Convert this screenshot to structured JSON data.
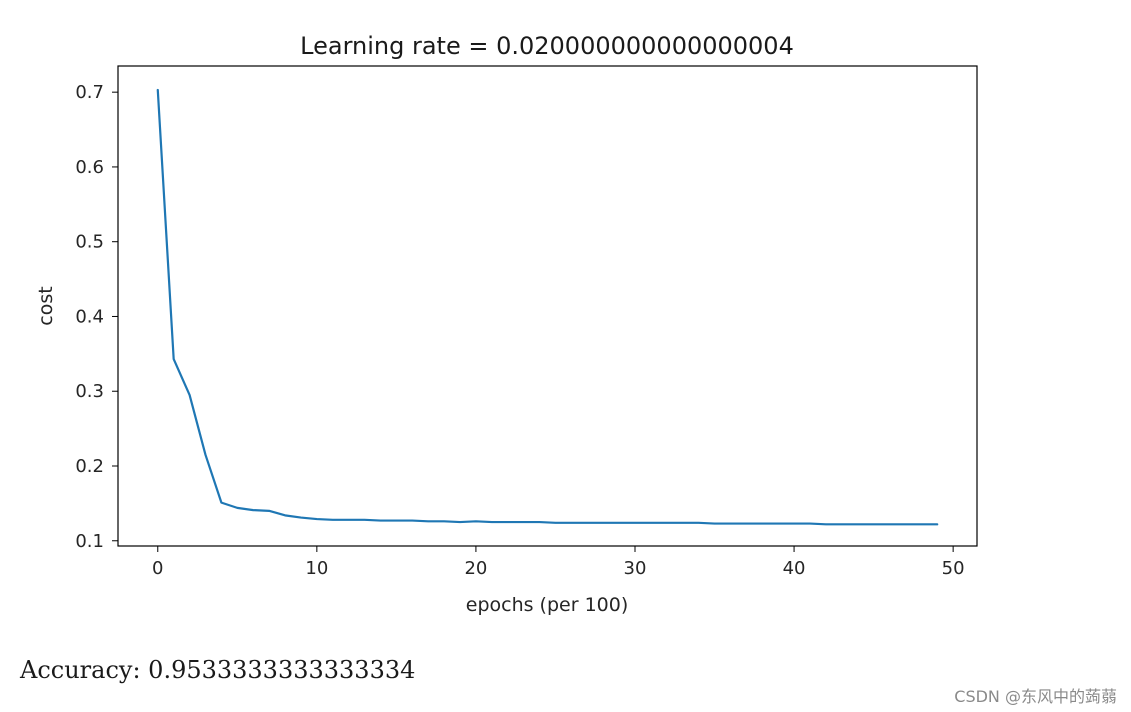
{
  "chart_data": {
    "type": "line",
    "title": "Learning rate = 0.020000000000000004",
    "xlabel": "epochs (per 100)",
    "ylabel": "cost",
    "xlim": [
      -2.5,
      51.5
    ],
    "ylim": [
      0.093,
      0.735
    ],
    "xticks": [
      0,
      10,
      20,
      30,
      40,
      50
    ],
    "yticks": [
      0.1,
      0.2,
      0.3,
      0.4,
      0.5,
      0.6,
      0.7
    ],
    "grid": false,
    "line_color": "#1f77b4",
    "series": [
      {
        "x": [
          0,
          1,
          2,
          3,
          4,
          5,
          6,
          7,
          8,
          9,
          10,
          11,
          12,
          13,
          14,
          15,
          16,
          17,
          18,
          19,
          20,
          21,
          22,
          23,
          24,
          25,
          26,
          27,
          28,
          29,
          30,
          31,
          32,
          33,
          34,
          35,
          36,
          37,
          38,
          39,
          40,
          41,
          42,
          43,
          44,
          45,
          46,
          47,
          48,
          49
        ],
        "values": [
          0.703,
          0.343,
          0.295,
          0.215,
          0.151,
          0.144,
          0.141,
          0.14,
          0.134,
          0.131,
          0.129,
          0.128,
          0.128,
          0.128,
          0.127,
          0.127,
          0.127,
          0.126,
          0.126,
          0.125,
          0.126,
          0.125,
          0.125,
          0.125,
          0.125,
          0.124,
          0.124,
          0.124,
          0.124,
          0.124,
          0.124,
          0.124,
          0.124,
          0.124,
          0.124,
          0.123,
          0.123,
          0.123,
          0.123,
          0.123,
          0.123,
          0.123,
          0.122,
          0.122,
          0.122,
          0.122,
          0.122,
          0.122,
          0.122,
          0.122
        ]
      }
    ]
  },
  "output": {
    "accuracy_text": "Accuracy: 0.9533333333333334"
  },
  "watermark": "CSDN @东风中的蒟蒻"
}
